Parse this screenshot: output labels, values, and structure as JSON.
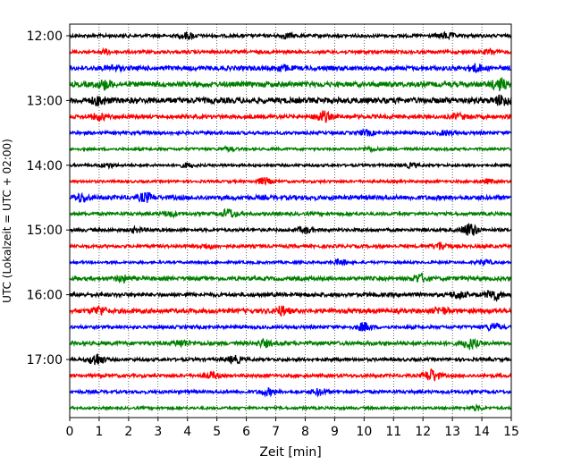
{
  "chart_data": {
    "type": "line",
    "title": "",
    "xlabel": "Zeit  [min]",
    "ylabel": "UTC (Lokalzeit = UTC + 02:00)",
    "xlim": [
      0,
      15
    ],
    "x_ticks": [
      "0",
      "1",
      "2",
      "3",
      "4",
      "5",
      "6",
      "7",
      "8",
      "9",
      "10",
      "11",
      "12",
      "13",
      "14",
      "15"
    ],
    "y_tick_labels": [
      "12:00",
      "13:00",
      "14:00",
      "15:00",
      "16:00",
      "17:00"
    ],
    "grid": "vertical-dotted",
    "row_interval_minutes": 15,
    "row_start": "12:00",
    "row_colors": [
      "#000000",
      "#ff0000",
      "#0000ff",
      "#008000"
    ],
    "rows": [
      {
        "time": "12:00",
        "color": "#000000",
        "amplitude": 0.25,
        "events": [
          {
            "x": 4.0,
            "amp": 0.45
          },
          {
            "x": 12.8,
            "amp": 0.4
          },
          {
            "x": 7.4,
            "amp": 0.3
          }
        ]
      },
      {
        "time": "12:15",
        "color": "#ff0000",
        "amplitude": 0.25,
        "events": [
          {
            "x": 1.2,
            "amp": 0.3
          },
          {
            "x": 14.3,
            "amp": 0.35
          }
        ]
      },
      {
        "time": "12:30",
        "color": "#0000ff",
        "amplitude": 0.35,
        "events": [
          {
            "x": 7.2,
            "amp": 0.4
          },
          {
            "x": 13.8,
            "amp": 0.5
          },
          {
            "x": 1.5,
            "amp": 0.35
          }
        ]
      },
      {
        "time": "12:45",
        "color": "#008000",
        "amplitude": 0.4,
        "events": [
          {
            "x": 1.2,
            "amp": 0.6
          },
          {
            "x": 14.6,
            "amp": 0.8
          }
        ]
      },
      {
        "time": "13:00",
        "color": "#000000",
        "amplitude": 0.45,
        "events": [
          {
            "x": 1.0,
            "amp": 0.55
          },
          {
            "x": 14.7,
            "amp": 0.7
          }
        ]
      },
      {
        "time": "13:15",
        "color": "#ff0000",
        "amplitude": 0.3,
        "events": [
          {
            "x": 1.0,
            "amp": 0.45
          },
          {
            "x": 8.6,
            "amp": 0.8
          },
          {
            "x": 13.2,
            "amp": 0.35
          }
        ]
      },
      {
        "time": "13:30",
        "color": "#0000ff",
        "amplitude": 0.25,
        "events": [
          {
            "x": 10.1,
            "amp": 0.35
          },
          {
            "x": 12.8,
            "amp": 0.3
          }
        ]
      },
      {
        "time": "13:45",
        "color": "#008000",
        "amplitude": 0.2,
        "events": [
          {
            "x": 5.4,
            "amp": 0.25
          },
          {
            "x": 10.2,
            "amp": 0.25
          }
        ]
      },
      {
        "time": "14:00",
        "color": "#000000",
        "amplitude": 0.2,
        "events": [
          {
            "x": 1.3,
            "amp": 0.3
          },
          {
            "x": 4.0,
            "amp": 0.3
          },
          {
            "x": 11.6,
            "amp": 0.3
          }
        ]
      },
      {
        "time": "14:15",
        "color": "#ff0000",
        "amplitude": 0.2,
        "events": [
          {
            "x": 6.6,
            "amp": 0.5
          },
          {
            "x": 14.2,
            "amp": 0.3
          }
        ]
      },
      {
        "time": "14:30",
        "color": "#0000ff",
        "amplitude": 0.35,
        "events": [
          {
            "x": 0.4,
            "amp": 0.55
          },
          {
            "x": 2.6,
            "amp": 0.6
          }
        ]
      },
      {
        "time": "14:45",
        "color": "#008000",
        "amplitude": 0.25,
        "events": [
          {
            "x": 5.4,
            "amp": 0.7
          },
          {
            "x": 3.4,
            "amp": 0.35
          }
        ]
      },
      {
        "time": "15:00",
        "color": "#000000",
        "amplitude": 0.25,
        "events": [
          {
            "x": 13.6,
            "amp": 1.0
          },
          {
            "x": 8.0,
            "amp": 0.4
          },
          {
            "x": 2.3,
            "amp": 0.3
          }
        ]
      },
      {
        "time": "15:15",
        "color": "#ff0000",
        "amplitude": 0.25,
        "events": [
          {
            "x": 12.6,
            "amp": 0.55
          },
          {
            "x": 4.7,
            "amp": 0.3
          }
        ]
      },
      {
        "time": "15:30",
        "color": "#0000ff",
        "amplitude": 0.2,
        "events": [
          {
            "x": 9.2,
            "amp": 0.4
          },
          {
            "x": 14.1,
            "amp": 0.4
          }
        ]
      },
      {
        "time": "15:45",
        "color": "#008000",
        "amplitude": 0.3,
        "events": [
          {
            "x": 1.8,
            "amp": 0.4
          },
          {
            "x": 11.9,
            "amp": 0.6
          }
        ]
      },
      {
        "time": "16:00",
        "color": "#000000",
        "amplitude": 0.3,
        "events": [
          {
            "x": 14.4,
            "amp": 0.8
          },
          {
            "x": 13.2,
            "amp": 0.5
          }
        ]
      },
      {
        "time": "16:15",
        "color": "#ff0000",
        "amplitude": 0.35,
        "events": [
          {
            "x": 1.0,
            "amp": 0.6
          },
          {
            "x": 7.2,
            "amp": 0.6
          },
          {
            "x": 12.6,
            "amp": 0.45
          }
        ]
      },
      {
        "time": "16:30",
        "color": "#0000ff",
        "amplitude": 0.25,
        "events": [
          {
            "x": 10.0,
            "amp": 0.6
          },
          {
            "x": 14.4,
            "amp": 0.55
          }
        ]
      },
      {
        "time": "16:45",
        "color": "#008000",
        "amplitude": 0.3,
        "events": [
          {
            "x": 3.8,
            "amp": 0.45
          },
          {
            "x": 6.6,
            "amp": 0.45
          },
          {
            "x": 13.6,
            "amp": 0.75
          }
        ]
      },
      {
        "time": "17:00",
        "color": "#000000",
        "amplitude": 0.25,
        "events": [
          {
            "x": 0.9,
            "amp": 0.95
          },
          {
            "x": 5.6,
            "amp": 0.5
          }
        ]
      },
      {
        "time": "17:15",
        "color": "#ff0000",
        "amplitude": 0.25,
        "events": [
          {
            "x": 4.8,
            "amp": 0.45
          },
          {
            "x": 12.3,
            "amp": 0.95
          }
        ]
      },
      {
        "time": "17:30",
        "color": "#0000ff",
        "amplitude": 0.25,
        "events": [
          {
            "x": 6.7,
            "amp": 0.45
          },
          {
            "x": 8.5,
            "amp": 0.45
          }
        ]
      },
      {
        "time": "17:45",
        "color": "#008000",
        "amplitude": 0.2,
        "events": [
          {
            "x": 13.8,
            "amp": 0.3
          }
        ]
      }
    ]
  }
}
